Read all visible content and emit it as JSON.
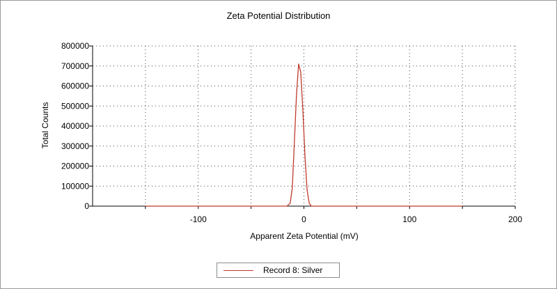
{
  "chart_data": {
    "type": "line",
    "title": "Zeta Potential Distribution",
    "xlabel": "Apparent Zeta Potential (mV)",
    "ylabel": "Total Counts",
    "xlim": [
      -200,
      200
    ],
    "ylim": [
      0,
      800000
    ],
    "x_ticks": [
      -100,
      0,
      100,
      200
    ],
    "y_ticks": [
      0,
      100000,
      200000,
      300000,
      400000,
      500000,
      600000,
      700000,
      800000
    ],
    "grid": true,
    "legend_position": "bottom-center",
    "series": [
      {
        "name": "Record 8: Silver",
        "color": "#c0392b",
        "x": [
          -150,
          -50,
          -16,
          -13,
          -11,
          -9,
          -7,
          -5,
          -3,
          -1,
          1,
          3,
          5,
          7,
          9,
          150
        ],
        "y": [
          0,
          0,
          0,
          15000,
          90000,
          320000,
          560000,
          710000,
          670000,
          480000,
          250000,
          80000,
          15000,
          0,
          0,
          0
        ]
      }
    ]
  }
}
